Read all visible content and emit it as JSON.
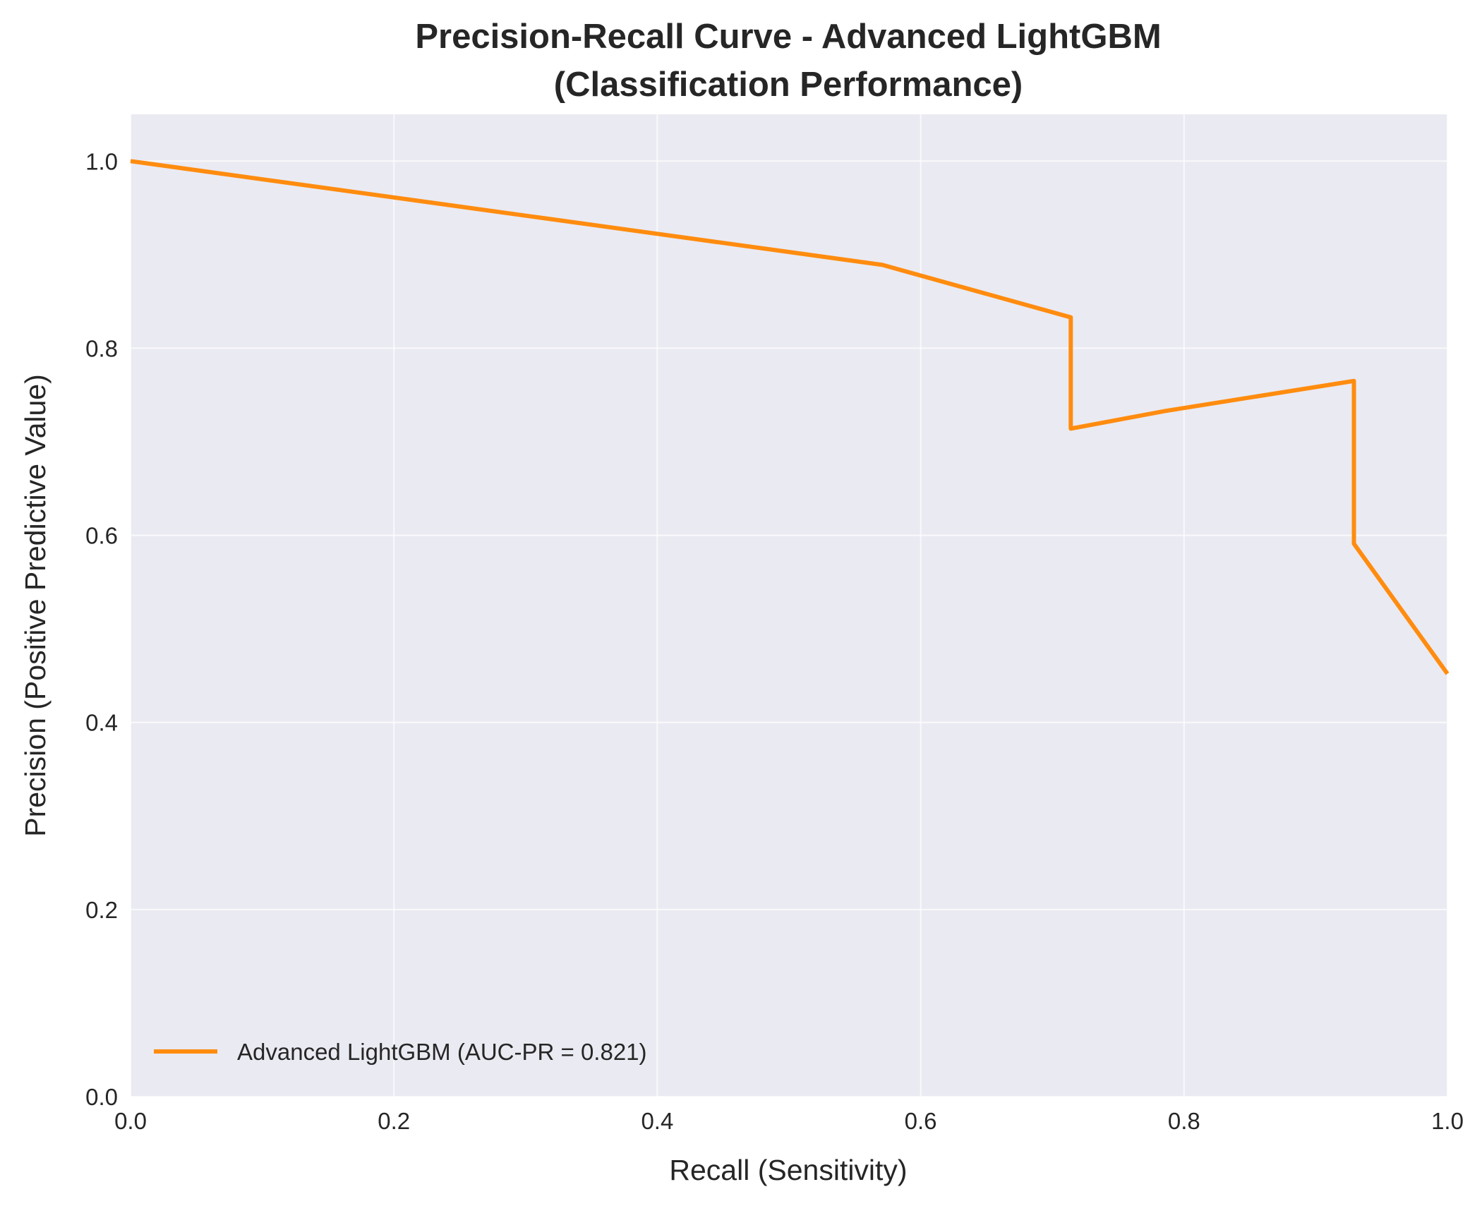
{
  "chart_data": {
    "type": "line",
    "title": "Precision-Recall Curve - Advanced LightGBM",
    "subtitle": "(Classification Performance)",
    "xlabel": "Recall (Sensitivity)",
    "ylabel": "Precision (Positive Predictive Value)",
    "xlim": [
      0.0,
      1.0
    ],
    "ylim": [
      0.0,
      1.05
    ],
    "xticks": [
      "0.0",
      "0.2",
      "0.4",
      "0.6",
      "0.8",
      "1.0"
    ],
    "yticks": [
      "0.0",
      "0.2",
      "0.4",
      "0.6",
      "0.8",
      "1.0"
    ],
    "grid": true,
    "legend_position": "lower-left",
    "background_color": "#eaeaf2",
    "series": [
      {
        "name": "Advanced LightGBM (AUC-PR = 0.821)",
        "color": "#ff8c0f",
        "x": [
          0.0,
          0.571,
          0.714,
          0.714,
          0.786,
          0.929,
          0.929,
          1.0
        ],
        "y": [
          1.0,
          0.889,
          0.833,
          0.714,
          0.733,
          0.765,
          0.591,
          0.452
        ]
      }
    ]
  }
}
